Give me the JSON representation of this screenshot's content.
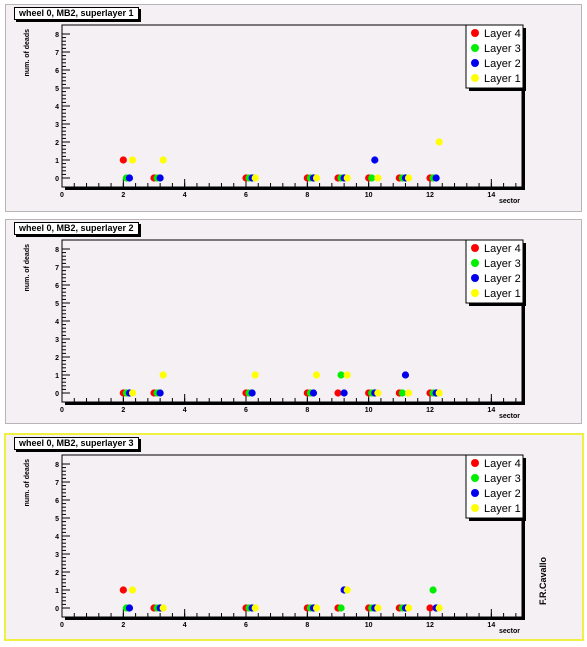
{
  "author": "F.R.Cavallo",
  "legend_colors": {
    "Layer 4": "#ff0000",
    "Layer 3": "#00ee00",
    "Layer 2": "#0000ee",
    "Layer 1": "#ffff00"
  },
  "chart_data": [
    {
      "type": "scatter",
      "title": "wheel 0, MB2, superlayer 1",
      "xlabel": "sector",
      "ylabel": "num. of deads",
      "xlim": [
        0,
        15
      ],
      "ylim": [
        -0.5,
        8.5
      ],
      "xticks": [
        "0",
        "2",
        "4",
        "6",
        "8",
        "10",
        "12",
        "14"
      ],
      "yticks": [
        "0",
        "1",
        "2",
        "3",
        "4",
        "5",
        "6",
        "7",
        "8"
      ],
      "legend_position": "top-right",
      "series": [
        {
          "name": "Layer 4",
          "color": "#ff0000",
          "x": [
            2,
            3,
            6,
            8,
            9,
            10,
            11,
            12
          ],
          "y": [
            1,
            0,
            0,
            0,
            0,
            0,
            0,
            0
          ]
        },
        {
          "name": "Layer 3",
          "color": "#00ee00",
          "x": [
            2.1,
            3.1,
            6.1,
            8.1,
            9.1,
            10.1,
            11.1,
            12.1
          ],
          "y": [
            0,
            0,
            0,
            0,
            0,
            0,
            0,
            0
          ]
        },
        {
          "name": "Layer 2",
          "color": "#0000ee",
          "x": [
            2.2,
            3.2,
            6.2,
            8.2,
            9.2,
            10.2,
            11.2,
            12.2
          ],
          "y": [
            0,
            0,
            0,
            0,
            0,
            1,
            0,
            0
          ]
        },
        {
          "name": "Layer 1",
          "color": "#ffff00",
          "x": [
            2.3,
            3.3,
            6.3,
            8.3,
            9.3,
            10.3,
            11.3,
            12.3
          ],
          "y": [
            1,
            1,
            0,
            0,
            0,
            0,
            0,
            2
          ]
        }
      ]
    },
    {
      "type": "scatter",
      "title": "wheel 0, MB2, superlayer 2",
      "xlabel": "sector",
      "ylabel": "num. of deads",
      "xlim": [
        0,
        15
      ],
      "ylim": [
        -0.5,
        8.5
      ],
      "xticks": [
        "0",
        "2",
        "4",
        "6",
        "8",
        "10",
        "12",
        "14"
      ],
      "yticks": [
        "0",
        "1",
        "2",
        "3",
        "4",
        "5",
        "6",
        "7",
        "8"
      ],
      "legend_position": "top-right",
      "series": [
        {
          "name": "Layer 4",
          "color": "#ff0000",
          "x": [
            2,
            3,
            6,
            8,
            9,
            10,
            11,
            12
          ],
          "y": [
            0,
            0,
            0,
            0,
            0,
            0,
            0,
            0
          ]
        },
        {
          "name": "Layer 3",
          "color": "#00ee00",
          "x": [
            2.1,
            3.1,
            6.1,
            8.1,
            9.1,
            10.1,
            11.1,
            12.1
          ],
          "y": [
            0,
            0,
            0,
            0,
            1,
            0,
            0,
            0
          ]
        },
        {
          "name": "Layer 2",
          "color": "#0000ee",
          "x": [
            2.2,
            3.2,
            6.2,
            8.2,
            9.2,
            10.2,
            11.2,
            12.2
          ],
          "y": [
            0,
            0,
            0,
            0,
            0,
            0,
            1,
            0
          ]
        },
        {
          "name": "Layer 1",
          "color": "#ffff00",
          "x": [
            2.3,
            3.3,
            6.3,
            8.3,
            9.3,
            10.3,
            11.3,
            12.3
          ],
          "y": [
            0,
            1,
            1,
            1,
            1,
            0,
            0,
            0
          ]
        }
      ]
    },
    {
      "type": "scatter",
      "title": "wheel 0, MB2, superlayer 3",
      "xlabel": "sector",
      "ylabel": "num. of deads",
      "xlim": [
        0,
        15
      ],
      "ylim": [
        -0.5,
        8.5
      ],
      "xticks": [
        "0",
        "2",
        "4",
        "6",
        "8",
        "10",
        "12",
        "14"
      ],
      "yticks": [
        "0",
        "1",
        "2",
        "3",
        "4",
        "5",
        "6",
        "7",
        "8"
      ],
      "legend_position": "top-right",
      "series": [
        {
          "name": "Layer 4",
          "color": "#ff0000",
          "x": [
            2,
            3,
            6,
            8,
            9,
            10,
            11,
            12
          ],
          "y": [
            1,
            0,
            0,
            0,
            0,
            0,
            0,
            0
          ]
        },
        {
          "name": "Layer 3",
          "color": "#00ee00",
          "x": [
            2.1,
            3.1,
            6.1,
            8.1,
            9.1,
            10.1,
            11.1,
            12.1
          ],
          "y": [
            0,
            0,
            0,
            0,
            0,
            0,
            0,
            1
          ]
        },
        {
          "name": "Layer 2",
          "color": "#0000ee",
          "x": [
            2.2,
            3.2,
            6.2,
            8.2,
            9.2,
            10.2,
            11.2,
            12.2
          ],
          "y": [
            0,
            0,
            0,
            0,
            1,
            0,
            0,
            0
          ]
        },
        {
          "name": "Layer 1",
          "color": "#ffff00",
          "x": [
            2.3,
            3.3,
            6.3,
            8.3,
            9.3,
            10.3,
            11.3,
            12.3
          ],
          "y": [
            1,
            0,
            0,
            0,
            1,
            0,
            0,
            0
          ]
        }
      ]
    }
  ]
}
